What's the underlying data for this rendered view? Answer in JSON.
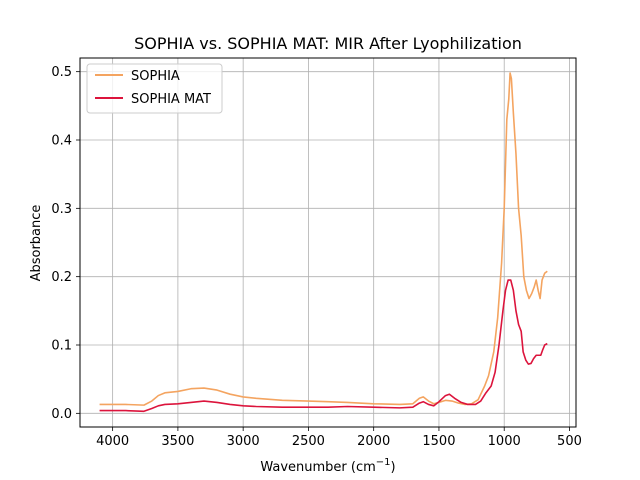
{
  "chart_data": {
    "type": "line",
    "title": "SOPHIA vs. SOPHIA MAT: MIR After Lyophilization",
    "xlabel": "Wavenumber (cm",
    "xlabel_sup": "−1",
    "xlabel_close": ")",
    "ylabel": "Absorbance",
    "xlim": [
      4250,
      450
    ],
    "ylim": [
      -0.02,
      0.52
    ],
    "x_reversed": true,
    "grid": true,
    "legend_position": "top-left",
    "x_ticks": [
      4000,
      3500,
      3000,
      2500,
      2000,
      1500,
      1000,
      500
    ],
    "y_ticks": [
      0.0,
      0.1,
      0.2,
      0.3,
      0.4,
      0.5
    ],
    "x_tick_labels": [
      "4000",
      "3500",
      "3000",
      "2500",
      "2000",
      "1500",
      "1000",
      "500"
    ],
    "y_tick_labels": [
      "0.0",
      "0.1",
      "0.2",
      "0.3",
      "0.4",
      "0.5"
    ],
    "series": [
      {
        "name": "SOPHIA",
        "color": "#f4a460",
        "points": [
          [
            4100,
            0.013
          ],
          [
            3900,
            0.013
          ],
          [
            3760,
            0.012
          ],
          [
            3700,
            0.018
          ],
          [
            3650,
            0.026
          ],
          [
            3600,
            0.03
          ],
          [
            3500,
            0.032
          ],
          [
            3400,
            0.036
          ],
          [
            3300,
            0.037
          ],
          [
            3200,
            0.034
          ],
          [
            3100,
            0.028
          ],
          [
            3000,
            0.024
          ],
          [
            2900,
            0.022
          ],
          [
            2700,
            0.019
          ],
          [
            2500,
            0.018
          ],
          [
            2350,
            0.017
          ],
          [
            2200,
            0.016
          ],
          [
            2000,
            0.014
          ],
          [
            1800,
            0.013
          ],
          [
            1700,
            0.014
          ],
          [
            1650,
            0.022
          ],
          [
            1620,
            0.024
          ],
          [
            1580,
            0.018
          ],
          [
            1540,
            0.014
          ],
          [
            1500,
            0.016
          ],
          [
            1450,
            0.019
          ],
          [
            1400,
            0.018
          ],
          [
            1350,
            0.015
          ],
          [
            1300,
            0.013
          ],
          [
            1250,
            0.014
          ],
          [
            1200,
            0.02
          ],
          [
            1150,
            0.04
          ],
          [
            1120,
            0.055
          ],
          [
            1080,
            0.09
          ],
          [
            1050,
            0.14
          ],
          [
            1020,
            0.22
          ],
          [
            1000,
            0.3
          ],
          [
            980,
            0.43
          ],
          [
            965,
            0.46
          ],
          [
            955,
            0.498
          ],
          [
            945,
            0.49
          ],
          [
            930,
            0.44
          ],
          [
            910,
            0.38
          ],
          [
            890,
            0.3
          ],
          [
            870,
            0.26
          ],
          [
            850,
            0.2
          ],
          [
            830,
            0.18
          ],
          [
            810,
            0.168
          ],
          [
            790,
            0.175
          ],
          [
            770,
            0.185
          ],
          [
            755,
            0.195
          ],
          [
            740,
            0.18
          ],
          [
            725,
            0.168
          ],
          [
            710,
            0.195
          ],
          [
            690,
            0.205
          ],
          [
            670,
            0.208
          ]
        ]
      },
      {
        "name": "SOPHIA MAT",
        "color": "#dc143c",
        "points": [
          [
            4100,
            0.004
          ],
          [
            3900,
            0.004
          ],
          [
            3760,
            0.003
          ],
          [
            3700,
            0.007
          ],
          [
            3650,
            0.011
          ],
          [
            3600,
            0.013
          ],
          [
            3500,
            0.014
          ],
          [
            3400,
            0.016
          ],
          [
            3300,
            0.018
          ],
          [
            3200,
            0.016
          ],
          [
            3100,
            0.013
          ],
          [
            3000,
            0.011
          ],
          [
            2900,
            0.01
          ],
          [
            2700,
            0.009
          ],
          [
            2500,
            0.009
          ],
          [
            2350,
            0.009
          ],
          [
            2200,
            0.01
          ],
          [
            2000,
            0.009
          ],
          [
            1800,
            0.008
          ],
          [
            1700,
            0.009
          ],
          [
            1650,
            0.015
          ],
          [
            1620,
            0.017
          ],
          [
            1580,
            0.013
          ],
          [
            1540,
            0.011
          ],
          [
            1500,
            0.017
          ],
          [
            1450,
            0.026
          ],
          [
            1420,
            0.028
          ],
          [
            1380,
            0.022
          ],
          [
            1330,
            0.016
          ],
          [
            1280,
            0.013
          ],
          [
            1220,
            0.013
          ],
          [
            1180,
            0.018
          ],
          [
            1140,
            0.03
          ],
          [
            1100,
            0.04
          ],
          [
            1070,
            0.06
          ],
          [
            1040,
            0.1
          ],
          [
            1010,
            0.15
          ],
          [
            990,
            0.18
          ],
          [
            970,
            0.195
          ],
          [
            950,
            0.195
          ],
          [
            930,
            0.18
          ],
          [
            910,
            0.15
          ],
          [
            890,
            0.13
          ],
          [
            870,
            0.12
          ],
          [
            855,
            0.09
          ],
          [
            835,
            0.078
          ],
          [
            815,
            0.072
          ],
          [
            795,
            0.073
          ],
          [
            775,
            0.08
          ],
          [
            755,
            0.085
          ],
          [
            735,
            0.085
          ],
          [
            720,
            0.085
          ],
          [
            705,
            0.093
          ],
          [
            690,
            0.1
          ],
          [
            670,
            0.102
          ]
        ]
      }
    ]
  }
}
